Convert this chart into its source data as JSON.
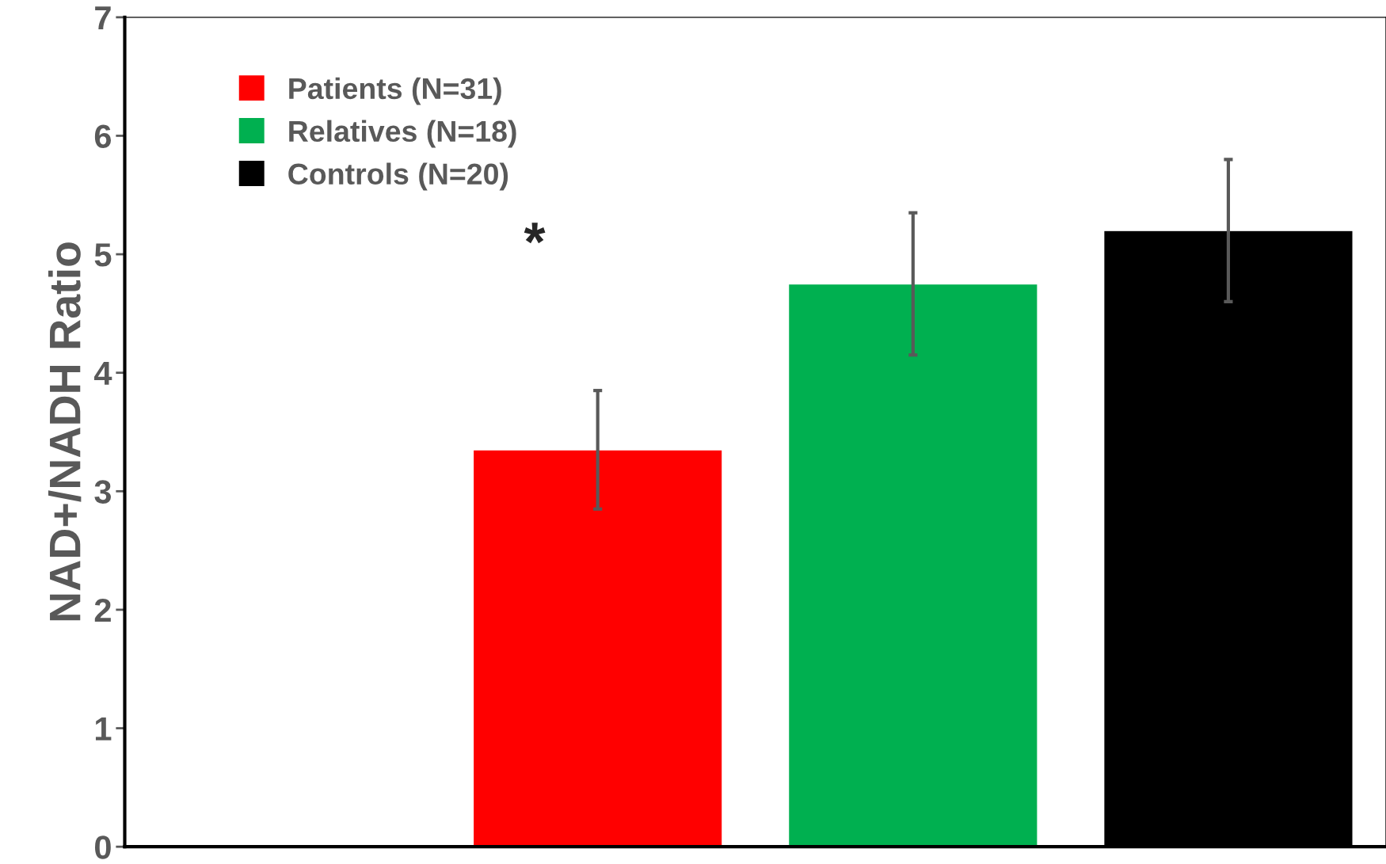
{
  "chart_data": {
    "type": "bar",
    "ylabel": "NAD+/NADH Ratio",
    "categories": [
      null,
      null,
      null,
      null
    ],
    "series": [
      {
        "name": "Patients (N=31)",
        "color": "#ff0000",
        "values": [
          null,
          3.35,
          null,
          null
        ],
        "errors": [
          null,
          0.5,
          null,
          null
        ]
      },
      {
        "name": "Relatives (N=18)",
        "color": "#00b050",
        "values": [
          null,
          null,
          4.75,
          null
        ],
        "errors": [
          null,
          null,
          0.6,
          null
        ]
      },
      {
        "name": "Controls (N=20)",
        "color": "#000000",
        "values": [
          null,
          null,
          null,
          5.2
        ],
        "errors": [
          null,
          null,
          null,
          0.6
        ]
      }
    ],
    "ylim": [
      0,
      7
    ],
    "yticks": [
      0,
      1,
      2,
      3,
      4,
      5,
      6,
      7
    ],
    "grid": false,
    "legend": "top left",
    "annotations": [
      "*"
    ]
  }
}
